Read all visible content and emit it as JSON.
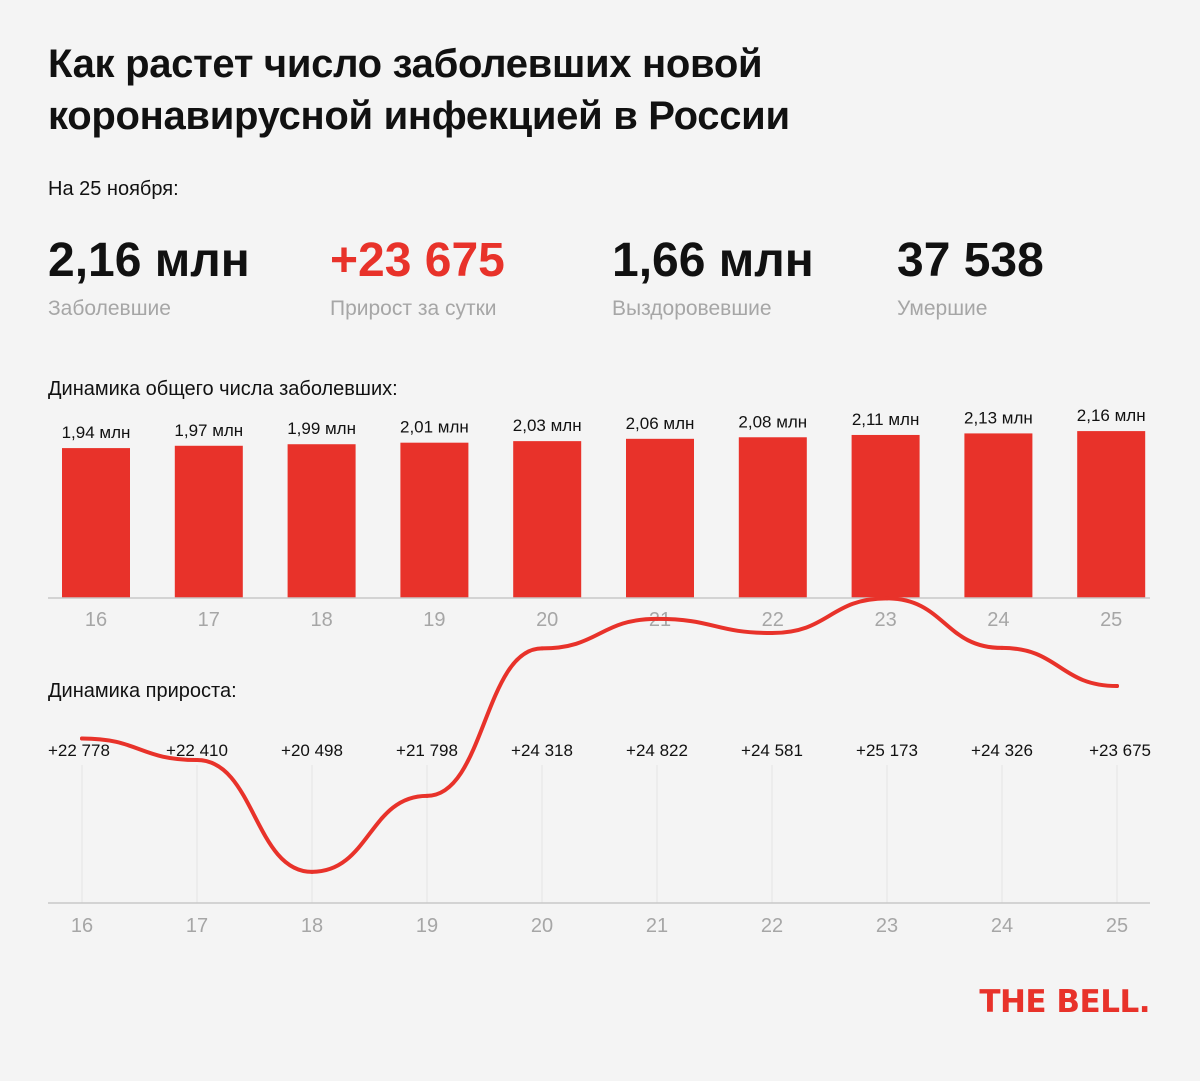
{
  "title": "Как растет число заболевших новой коронавирусной инфекцией в России",
  "as_of": "На 25 ноября:",
  "stats": {
    "cases": {
      "value": "2,16 млн",
      "label": "Заболевшие"
    },
    "daily": {
      "value": "+23 675",
      "label": "Прирост за сутки"
    },
    "recovered": {
      "value": "1,66 млн",
      "label": "Выздоровевшие"
    },
    "deaths": {
      "value": "37 538",
      "label": "Умершие"
    }
  },
  "colors": {
    "accent": "#e8322a",
    "text": "#111111",
    "muted": "#a6a6a6",
    "background": "#f4f4f4",
    "grid": "#e3e3e3",
    "axis": "#c8c8c8"
  },
  "sections": {
    "total_title": "Динамика общего числа заболевших:",
    "growth_title": "Динамика прироста:"
  },
  "chart_data": [
    {
      "type": "bar",
      "title": "Динамика общего числа заболевших:",
      "categories": [
        "16",
        "17",
        "18",
        "19",
        "20",
        "21",
        "22",
        "23",
        "24",
        "25"
      ],
      "values": [
        1.94,
        1.97,
        1.99,
        2.01,
        2.03,
        2.06,
        2.08,
        2.11,
        2.13,
        2.16
      ],
      "data_labels": [
        "1,94 млн",
        "1,97 млн",
        "1,99 млн",
        "2,01 млн",
        "2,03 млн",
        "2,06 млн",
        "2,08 млн",
        "2,11 млн",
        "2,13 млн",
        "2,16 млн"
      ],
      "unit": "млн",
      "color": "#e8322a",
      "ylim": [
        0,
        2.2
      ],
      "grid": false
    },
    {
      "type": "line",
      "title": "Динамика прироста:",
      "x": [
        "16",
        "17",
        "18",
        "19",
        "20",
        "21",
        "22",
        "23",
        "24",
        "25"
      ],
      "values": [
        22778,
        22410,
        20498,
        21798,
        24318,
        24822,
        24581,
        25173,
        24326,
        23675
      ],
      "data_labels": [
        "+22 778",
        "+22 410",
        "+20 498",
        "+21 798",
        "+24 318",
        "+24 822",
        "+24 581",
        "+25 173",
        "+24 326",
        "+23 675"
      ],
      "color": "#e8322a",
      "smooth": true,
      "grid": "vertical"
    }
  ],
  "logo": "THE BELL."
}
